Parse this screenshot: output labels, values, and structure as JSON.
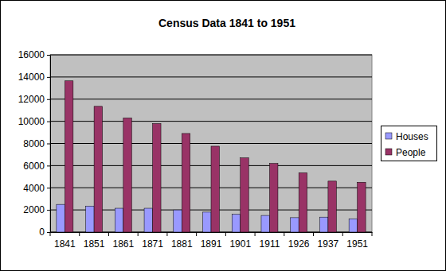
{
  "chart_data": {
    "type": "bar",
    "title": "Census Data 1841 to 1951",
    "categories": [
      "1841",
      "1851",
      "1861",
      "1871",
      "1881",
      "1891",
      "1901",
      "1911",
      "1926",
      "1937",
      "1951"
    ],
    "series": [
      {
        "name": "Houses",
        "color": "#9999ff",
        "values": [
          2500,
          2350,
          2150,
          2150,
          2000,
          1800,
          1600,
          1500,
          1300,
          1350,
          1200
        ]
      },
      {
        "name": "People",
        "color": "#993366",
        "values": [
          13650,
          11350,
          10300,
          9800,
          8900,
          7750,
          6700,
          6200,
          5350,
          4600,
          4500
        ]
      }
    ],
    "ylim": [
      0,
      16000
    ],
    "yticks": [
      0,
      2000,
      4000,
      6000,
      8000,
      10000,
      12000,
      14000,
      16000
    ],
    "grid": true,
    "legend": "right"
  }
}
